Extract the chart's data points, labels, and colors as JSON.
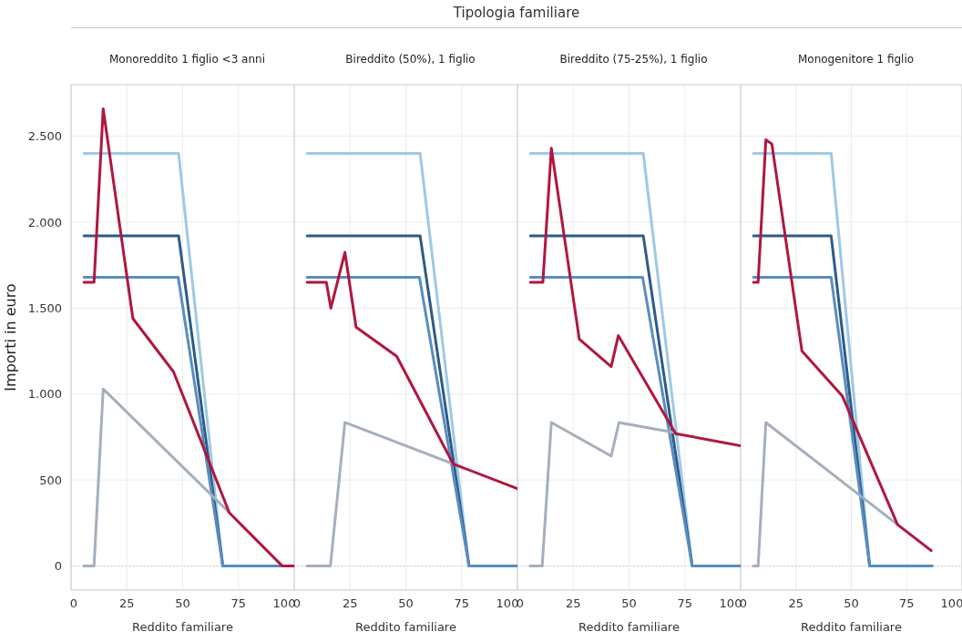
{
  "chart_data": [
    {
      "type": "line",
      "title": "Monoreddito 1 figlio <3 anni",
      "ref_lines": [
        {
          "axis": "y",
          "value": 0,
          "color": "#bbbbbb",
          "line_style": "dotted"
        }
      ],
      "xlabel": "Reddito familiare",
      "ylabel": "Importi in euro",
      "annotations": [
        "Tipologia familiare"
      ],
      "xlim": [
        0,
        100
      ],
      "xticks": [
        0,
        25,
        50,
        75,
        100
      ],
      "ylim": [
        -140,
        2800
      ],
      "yticks": [
        0,
        {
          "value": 500,
          "label": "500"
        },
        {
          "value": 1000,
          "label": "1.000"
        },
        {
          "value": 1500,
          "label": "1.500"
        },
        {
          "value": 2000,
          "label": "2.000"
        },
        {
          "value": 2500,
          "label": "2.500"
        }
      ],
      "grid": true,
      "series": [
        {
          "color": "#9dc9e6",
          "x": [
            5.8,
            48.2,
            68,
            100
          ],
          "values": [
            2400,
            2400,
            0,
            0
          ]
        },
        {
          "color": "#2d5b89",
          "x": [
            5.8,
            48.2,
            68,
            100
          ],
          "values": [
            1920,
            1920,
            0,
            0
          ]
        },
        {
          "color": "#5b8dbf",
          "x": [
            5.8,
            48,
            68,
            100
          ],
          "values": [
            1680,
            1680,
            0,
            0
          ]
        },
        {
          "color": "#a5afbd",
          "x": [
            5.8,
            10.3,
            14.4,
            70.5
          ],
          "values": [
            0,
            0,
            1030,
            316
          ]
        },
        {
          "color": "#b0173f",
          "x": [
            5.8,
            10.3,
            14.4,
            27.7,
            45.9,
            70.9,
            94.7,
            100
          ],
          "values": [
            1650,
            1650,
            2660,
            1440,
            1130,
            310,
            0,
            0
          ]
        }
      ]
    },
    {
      "type": "line",
      "title": "Bireddito (50%), 1 figlio",
      "ref_lines": [
        {
          "axis": "y",
          "value": 0,
          "color": "#bbbbbb",
          "line_style": "dotted"
        }
      ],
      "xlabel": "Reddito familiare",
      "xlim": [
        0,
        100
      ],
      "xticks": [
        0,
        25,
        50,
        75,
        100
      ],
      "ylim": [
        -140,
        2800
      ],
      "yticks": [
        {
          "value": 0,
          "label": null
        },
        {
          "value": 500,
          "label": null
        },
        {
          "value": 1000,
          "label": null
        },
        {
          "value": 1500,
          "label": null
        },
        {
          "value": 2000,
          "label": null
        },
        {
          "value": 2500,
          "label": null
        }
      ],
      "grid": true,
      "tick_labels": "x",
      "series": [
        {
          "color": "#9dc9e6",
          "x": [
            5.8,
            56.4,
            78.3,
            100
          ],
          "values": [
            2400,
            2400,
            0,
            0
          ]
        },
        {
          "color": "#2d5b89",
          "x": [
            5.8,
            56.4,
            78.3,
            100
          ],
          "values": [
            1920,
            1920,
            0,
            0
          ]
        },
        {
          "color": "#5b8dbf",
          "x": [
            5.8,
            56.1,
            78.3,
            100
          ],
          "values": [
            1680,
            1680,
            0,
            0
          ]
        },
        {
          "color": "#a5afbd",
          "x": [
            5.8,
            16.2,
            22.7,
            71.2
          ],
          "values": [
            0,
            0,
            835,
            594
          ]
        },
        {
          "color": "#b0173f",
          "x": [
            5.8,
            14.4,
            16.4,
            22.7,
            27.7,
            45.9,
            71.2,
            100
          ],
          "values": [
            1650,
            1650,
            1500,
            1825,
            1390,
            1220,
            594,
            450
          ]
        }
      ]
    },
    {
      "type": "line",
      "title": "Bireddito (75-25%), 1 figlio",
      "ref_lines": [
        {
          "axis": "y",
          "value": 0,
          "color": "#bbbbbb",
          "line_style": "dotted"
        }
      ],
      "xlabel": "Reddito familiare",
      "xlim": [
        0,
        100
      ],
      "xticks": [
        0,
        25,
        50,
        75,
        100
      ],
      "ylim": [
        -140,
        2800
      ],
      "yticks": [
        {
          "value": 0,
          "label": null
        },
        {
          "value": 500,
          "label": null
        },
        {
          "value": 1000,
          "label": null
        },
        {
          "value": 1500,
          "label": null
        },
        {
          "value": 2000,
          "label": null
        },
        {
          "value": 2500,
          "label": null
        }
      ],
      "grid": true,
      "tick_labels": "x",
      "series": [
        {
          "color": "#9dc9e6",
          "x": [
            5.8,
            56.4,
            78.3,
            100
          ],
          "values": [
            2400,
            2400,
            0,
            0
          ]
        },
        {
          "color": "#2d5b89",
          "x": [
            5.8,
            56.4,
            78.3,
            100
          ],
          "values": [
            1920,
            1920,
            0,
            0
          ]
        },
        {
          "color": "#5b8dbf",
          "x": [
            5.8,
            56.1,
            78.3,
            100
          ],
          "values": [
            1680,
            1680,
            0,
            0
          ]
        },
        {
          "color": "#a5afbd",
          "x": [
            5.8,
            11.1,
            15.2,
            42,
            45.5,
            70.9
          ],
          "values": [
            0,
            0,
            835,
            640,
            835,
            775
          ]
        },
        {
          "color": "#b0173f",
          "x": [
            5.8,
            11.4,
            15.2,
            27.7,
            42,
            45.2,
            70.9,
            100
          ],
          "values": [
            1650,
            1650,
            2430,
            1320,
            1160,
            1340,
            770,
            700
          ]
        }
      ]
    },
    {
      "type": "line",
      "title": "Monogenitore 1 figlio",
      "ref_lines": [
        {
          "axis": "y",
          "value": 0,
          "color": "#bbbbbb",
          "line_style": "dotted"
        }
      ],
      "xlabel": "Reddito familiare",
      "xlim": [
        0,
        100
      ],
      "xticks": [
        0,
        25,
        50,
        75,
        100
      ],
      "ylim": [
        -140,
        2800
      ],
      "yticks": [
        {
          "value": 0,
          "label": null
        },
        {
          "value": 500,
          "label": null
        },
        {
          "value": 1000,
          "label": null
        },
        {
          "value": 1500,
          "label": null
        },
        {
          "value": 2000,
          "label": null
        },
        {
          "value": 2500,
          "label": null
        }
      ],
      "grid": true,
      "tick_labels": "x",
      "series": [
        {
          "color": "#9dc9e6",
          "x": [
            5.8,
            40.9,
            58.3,
            86.4
          ],
          "values": [
            2400,
            2400,
            0,
            0
          ]
        },
        {
          "color": "#2d5b89",
          "x": [
            5.8,
            40.9,
            58.3,
            86.4
          ],
          "values": [
            1920,
            1920,
            0,
            0
          ]
        },
        {
          "color": "#5b8dbf",
          "x": [
            5.8,
            40.9,
            58.3,
            86.4
          ],
          "values": [
            1680,
            1680,
            0,
            0
          ]
        },
        {
          "color": "#a5afbd",
          "x": [
            5.8,
            7.9,
            11.4,
            70.9
          ],
          "values": [
            0,
            0,
            835,
            241
          ]
        },
        {
          "color": "#b0173f",
          "x": [
            5.8,
            7.9,
            11.4,
            14.1,
            27.7,
            45.9,
            70.9,
            86.1
          ],
          "values": [
            1650,
            1650,
            2480,
            2455,
            1250,
            990,
            241,
            90
          ]
        }
      ]
    }
  ]
}
